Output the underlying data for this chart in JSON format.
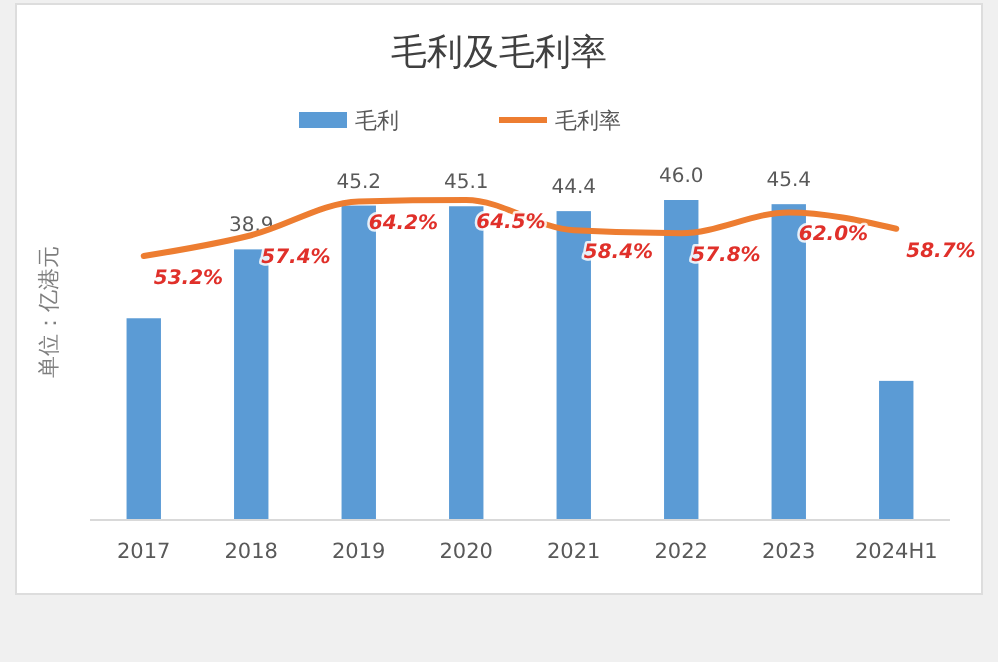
{
  "chart_data": {
    "type": "bar",
    "title": "毛利及毛利率",
    "ylabel": "单位：亿港元",
    "categories": [
      "2017",
      "2018",
      "2019",
      "2020",
      "2021",
      "2022",
      "2023",
      "2024H1"
    ],
    "series": [
      {
        "name": "毛利",
        "color": "#5b9bd5",
        "values": [
          29,
          38.9,
          45.2,
          45.1,
          44.4,
          46.0,
          45.4,
          20
        ],
        "value_labels": [
          null,
          "38.9",
          "45.2",
          "45.1",
          "44.4",
          "46.0",
          "45.4",
          null
        ]
      },
      {
        "name": "毛利率",
        "type": "line",
        "axis": "y2",
        "color": "#ed7d31",
        "values": [
          53.2,
          57.4,
          64.2,
          64.5,
          58.4,
          57.8,
          62.0,
          58.7
        ],
        "value_labels": [
          "53.2%",
          "57.4%",
          "64.2%",
          "64.5%",
          "58.4%",
          "57.8%",
          "62.0%",
          "58.7%"
        ]
      }
    ],
    "tick_labels": "x",
    "legend": "top",
    "marker": "none",
    "line_style": "solid"
  }
}
